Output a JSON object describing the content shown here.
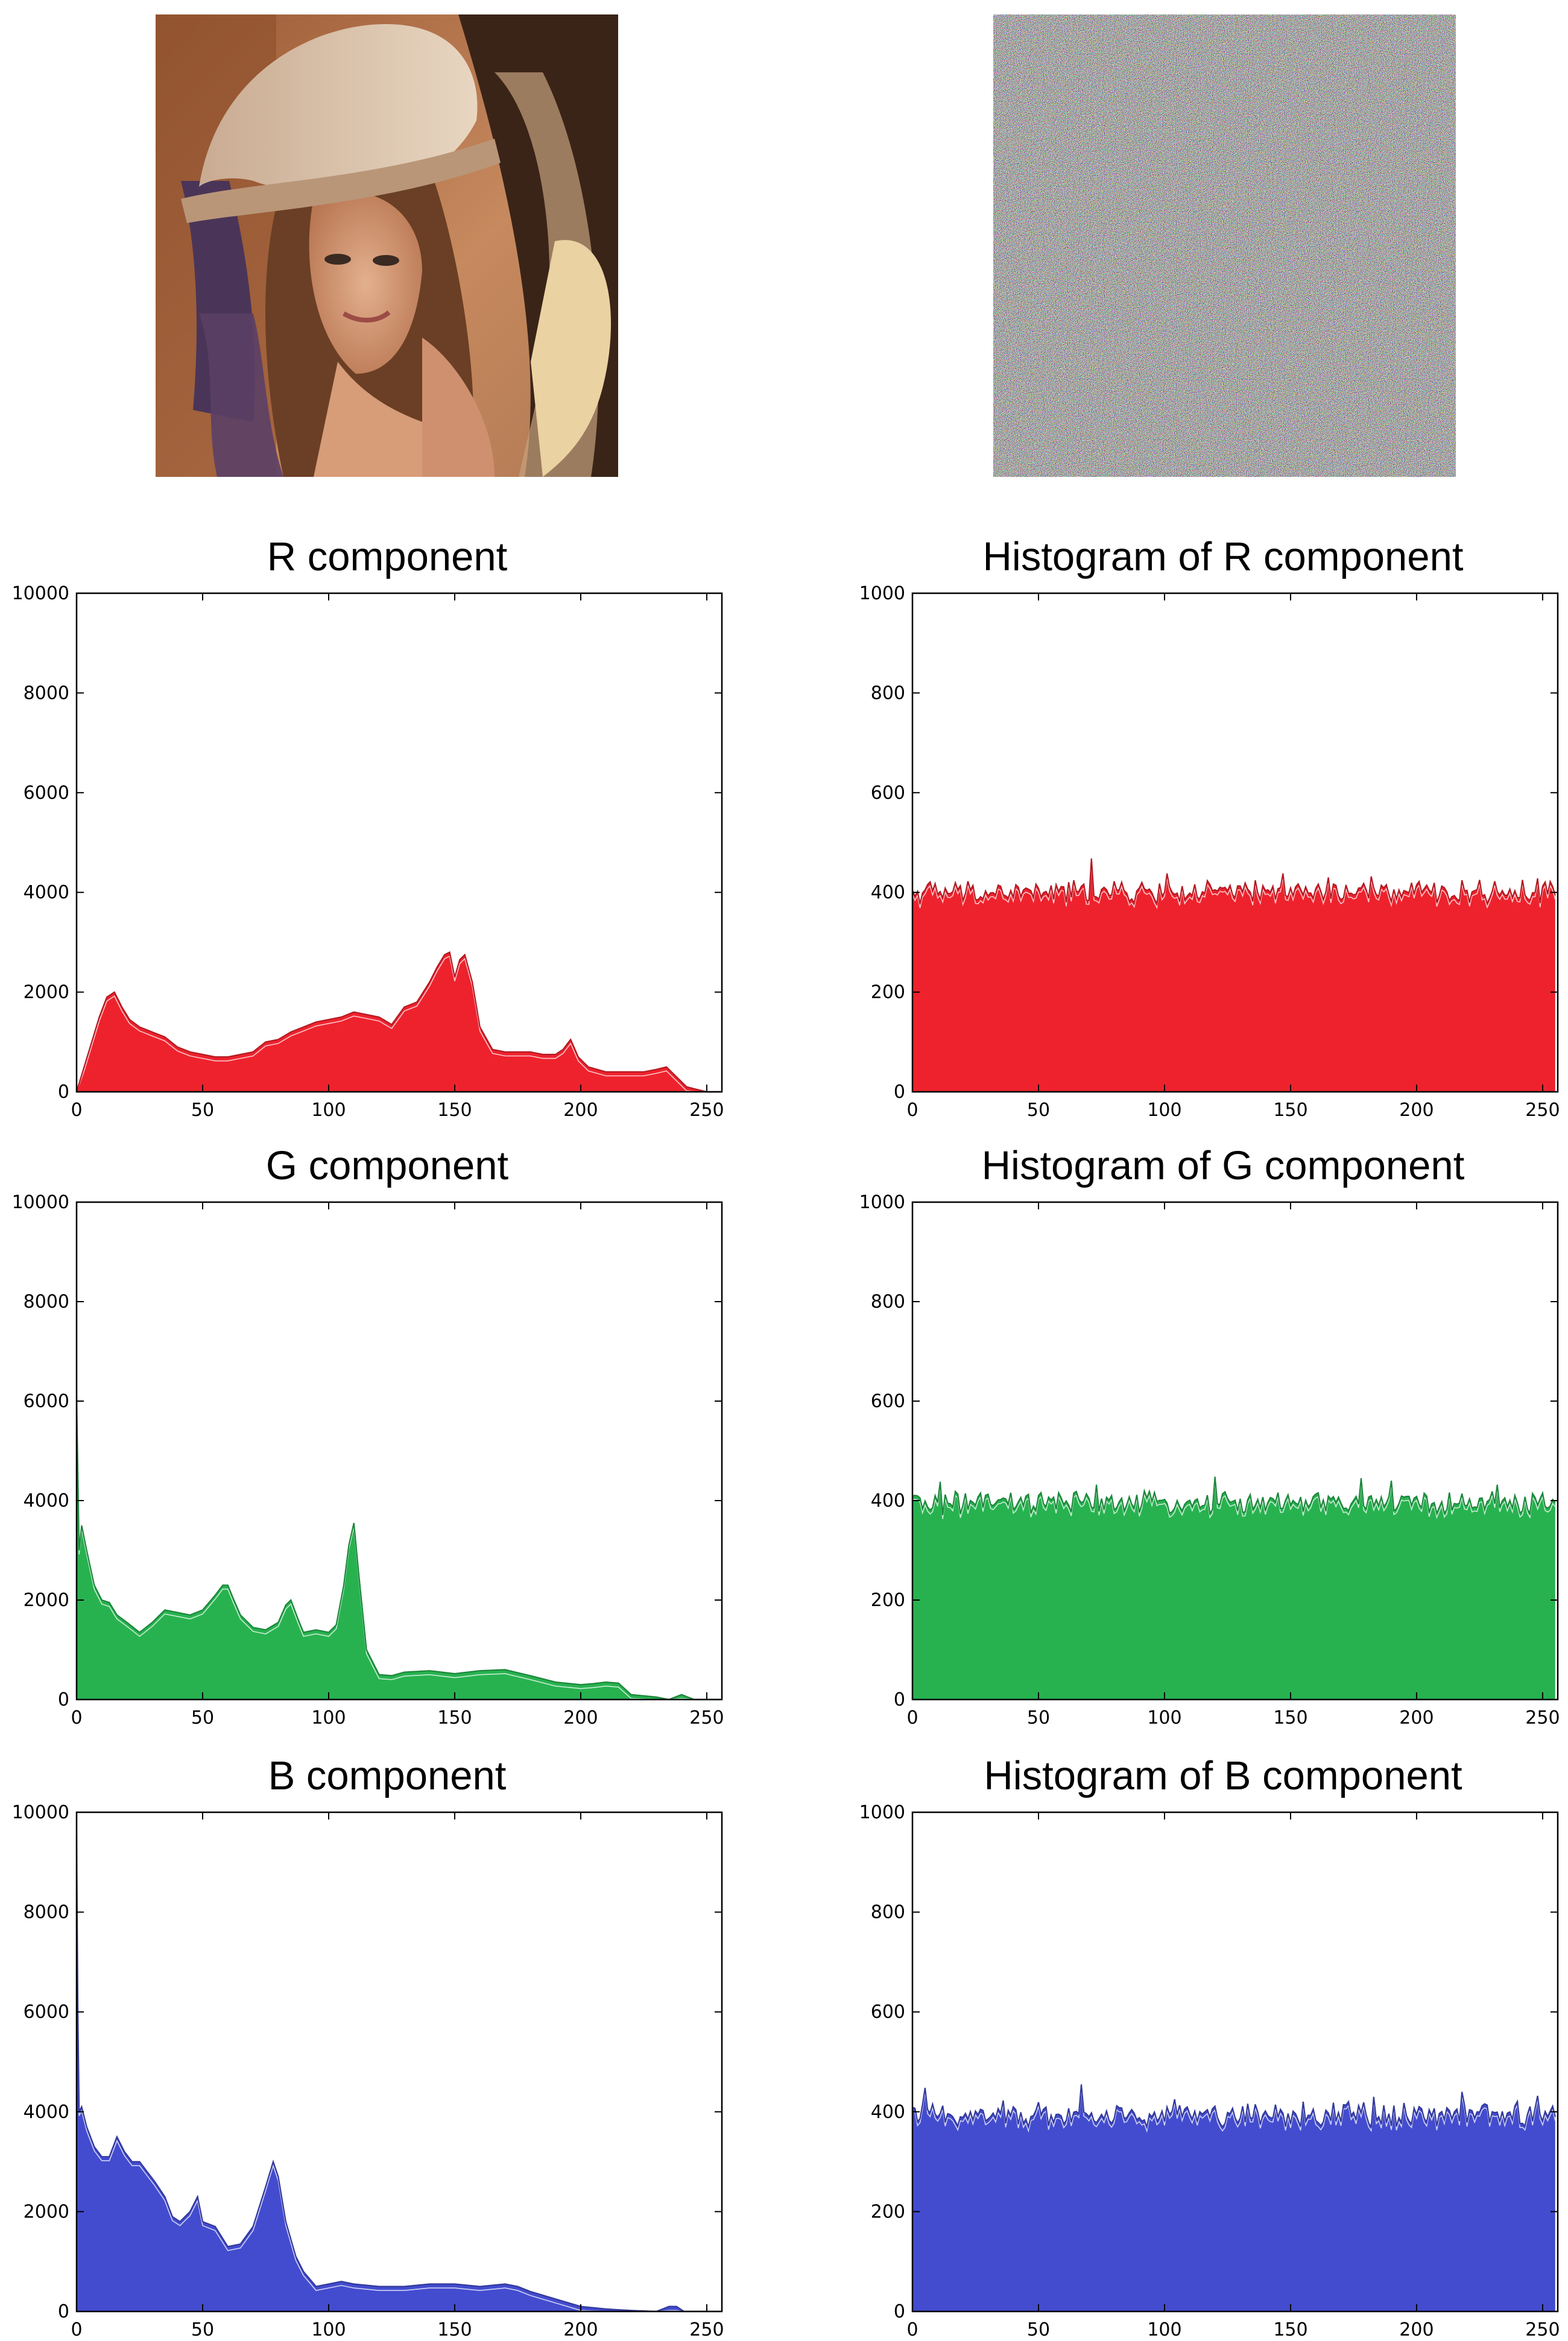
{
  "figure": {
    "images": [
      {
        "name": "original-photo",
        "kind": "photograph"
      },
      {
        "name": "encrypted-noise",
        "kind": "noise"
      }
    ]
  },
  "chart_data": [
    {
      "id": "p1",
      "type": "area",
      "title": "R component",
      "xlabel": "",
      "ylabel": "",
      "xlim": [
        0,
        256
      ],
      "ylim": [
        0,
        10000
      ],
      "xticks": [
        0,
        50,
        100,
        150,
        200,
        250
      ],
      "yticks": [
        0,
        2000,
        4000,
        6000,
        8000,
        10000
      ],
      "color": "#ee222d",
      "grid": false,
      "x": [
        0,
        3,
        6,
        9,
        12,
        15,
        18,
        21,
        25,
        30,
        35,
        40,
        45,
        50,
        55,
        60,
        65,
        70,
        75,
        80,
        85,
        90,
        95,
        100,
        105,
        110,
        115,
        120,
        125,
        130,
        135,
        140,
        143,
        146,
        148,
        150,
        152,
        154,
        157,
        160,
        165,
        170,
        175,
        180,
        185,
        190,
        193,
        196,
        199,
        203,
        210,
        220,
        225,
        230,
        234,
        238,
        242,
        246,
        250,
        255
      ],
      "y": [
        0,
        500,
        1000,
        1500,
        1900,
        2000,
        1700,
        1450,
        1300,
        1200,
        1100,
        900,
        800,
        750,
        700,
        700,
        750,
        800,
        1000,
        1050,
        1200,
        1300,
        1400,
        1450,
        1500,
        1600,
        1550,
        1500,
        1350,
        1700,
        1800,
        2200,
        2500,
        2750,
        2800,
        2300,
        2650,
        2750,
        2200,
        1300,
        850,
        800,
        800,
        800,
        750,
        750,
        850,
        1050,
        700,
        500,
        400,
        400,
        400,
        450,
        500,
        300,
        100,
        50,
        0,
        0
      ]
    },
    {
      "id": "p2",
      "type": "area",
      "title": "Histogram of R component",
      "xlabel": "",
      "ylabel": "",
      "xlim": [
        0,
        256
      ],
      "ylim": [
        0,
        1000
      ],
      "xticks": [
        0,
        50,
        100,
        150,
        200,
        250
      ],
      "yticks": [
        0,
        200,
        400,
        600,
        800,
        1000
      ],
      "color": "#ee222d",
      "grid": false,
      "mean": 400,
      "spread": 20,
      "peaks": [
        [
          71,
          468
        ],
        [
          101,
          438
        ],
        [
          147,
          438
        ],
        [
          165,
          430
        ],
        [
          182,
          432
        ],
        [
          225,
          425
        ],
        [
          248,
          428
        ]
      ]
    },
    {
      "id": "p3",
      "type": "area",
      "title": "G component",
      "xlabel": "",
      "ylabel": "",
      "xlim": [
        0,
        256
      ],
      "ylim": [
        0,
        10000
      ],
      "xticks": [
        0,
        50,
        100,
        150,
        200,
        250
      ],
      "yticks": [
        0,
        2000,
        4000,
        6000,
        8000,
        10000
      ],
      "color": "#27b24f",
      "grid": false,
      "x": [
        0,
        1,
        2,
        4,
        7,
        10,
        13,
        16,
        20,
        25,
        30,
        35,
        40,
        45,
        50,
        55,
        58,
        60,
        62,
        65,
        70,
        75,
        80,
        83,
        85,
        88,
        90,
        95,
        100,
        103,
        106,
        108,
        110,
        112,
        115,
        120,
        125,
        130,
        140,
        150,
        160,
        170,
        180,
        190,
        200,
        205,
        210,
        215,
        220,
        230,
        235,
        240,
        245,
        250,
        255
      ],
      "y": [
        6100,
        3000,
        3500,
        3000,
        2300,
        2000,
        1950,
        1700,
        1550,
        1350,
        1550,
        1800,
        1750,
        1700,
        1800,
        2100,
        2300,
        2300,
        2050,
        1700,
        1450,
        1400,
        1550,
        1900,
        2000,
        1600,
        1350,
        1400,
        1350,
        1500,
        2300,
        3100,
        3550,
        2500,
        1000,
        500,
        480,
        550,
        580,
        520,
        580,
        600,
        480,
        350,
        300,
        320,
        350,
        330,
        100,
        50,
        0,
        100,
        0,
        0,
        0
      ]
    },
    {
      "id": "p4",
      "type": "area",
      "title": "Histogram of G component",
      "xlabel": "",
      "ylabel": "",
      "xlim": [
        0,
        256
      ],
      "ylim": [
        0,
        1000
      ],
      "xticks": [
        0,
        50,
        100,
        150,
        200,
        250
      ],
      "yticks": [
        0,
        200,
        400,
        600,
        800,
        1000
      ],
      "color": "#27b24f",
      "grid": false,
      "mean": 395,
      "spread": 20,
      "peaks": [
        [
          11,
          438
        ],
        [
          73,
          432
        ],
        [
          120,
          448
        ],
        [
          178,
          445
        ],
        [
          190,
          440
        ],
        [
          232,
          432
        ]
      ]
    },
    {
      "id": "p5",
      "type": "area",
      "title": "B component",
      "xlabel": "",
      "ylabel": "",
      "xlim": [
        0,
        256
      ],
      "ylim": [
        0,
        10000
      ],
      "xticks": [
        0,
        50,
        100,
        150,
        200,
        250
      ],
      "yticks": [
        0,
        2000,
        4000,
        6000,
        8000,
        10000
      ],
      "color": "#434ccf",
      "grid": false,
      "x": [
        0,
        0.5,
        1,
        2,
        4,
        7,
        10,
        13,
        16,
        19,
        22,
        25,
        28,
        31,
        35,
        38,
        41,
        45,
        48,
        50,
        55,
        60,
        65,
        70,
        75,
        78,
        80,
        83,
        87,
        90,
        95,
        100,
        105,
        110,
        120,
        130,
        140,
        150,
        160,
        170,
        175,
        180,
        190,
        200,
        210,
        220,
        230,
        235,
        238,
        241,
        245,
        250,
        255
      ],
      "y": [
        9500,
        6000,
        4000,
        4100,
        3700,
        3300,
        3100,
        3100,
        3500,
        3200,
        3000,
        3000,
        2800,
        2600,
        2300,
        1900,
        1800,
        2000,
        2300,
        1800,
        1700,
        1300,
        1350,
        1700,
        2500,
        3000,
        2700,
        1800,
        1100,
        800,
        500,
        550,
        600,
        550,
        500,
        500,
        550,
        550,
        500,
        550,
        500,
        400,
        250,
        100,
        50,
        20,
        0,
        100,
        100,
        0,
        0,
        0,
        0
      ]
    },
    {
      "id": "p6",
      "type": "area",
      "title": "Histogram of B component",
      "xlabel": "",
      "ylabel": "",
      "xlim": [
        0,
        256
      ],
      "ylim": [
        0,
        1000
      ],
      "xticks": [
        0,
        50,
        100,
        150,
        200,
        250
      ],
      "yticks": [
        0,
        200,
        400,
        600,
        800,
        1000
      ],
      "color": "#434ccf",
      "grid": false,
      "mean": 395,
      "spread": 22,
      "peaks": [
        [
          5,
          448
        ],
        [
          67,
          455
        ],
        [
          104,
          425
        ],
        [
          183,
          430
        ],
        [
          218,
          440
        ],
        [
          248,
          432
        ]
      ]
    }
  ]
}
